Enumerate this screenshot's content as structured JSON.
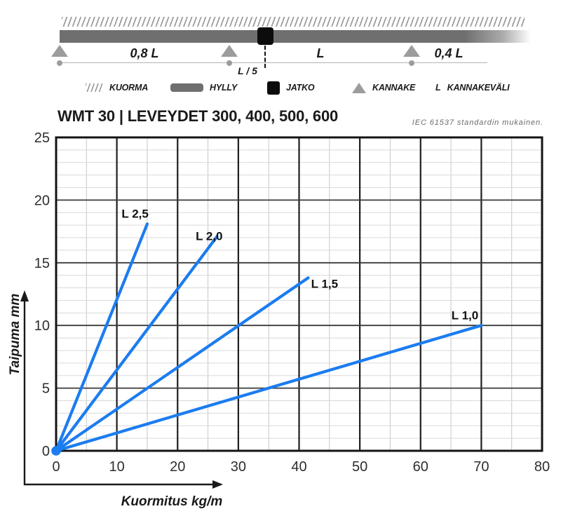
{
  "schematic": {
    "span_labels": {
      "left": "0,8 L",
      "middle": "L",
      "right": "0,4 L",
      "joint_offset": "L / 5"
    },
    "colors": {
      "beam": "#6f6f6f",
      "support": "#9c9c9c",
      "joint": "#0c0c0c"
    }
  },
  "legend": {
    "items": [
      {
        "icon": "hatch-icon",
        "label": "KUORMA"
      },
      {
        "icon": "tray-bar-icon",
        "label": "HYLLY"
      },
      {
        "icon": "joint-square-icon",
        "label": "JATKO"
      },
      {
        "icon": "support-triangle-icon",
        "label": "KANNAKE"
      },
      {
        "icon": "letter-l-symbol",
        "symbol": "L",
        "label": "KANNAKEVÄLI"
      }
    ]
  },
  "header": {
    "title": "WMT 30 | LEVEYDET 300, 400, 500, 600",
    "standard_note": "IEC 61537 standardin mukainen."
  },
  "chart_data": {
    "type": "line",
    "title": "WMT 30 | LEVEYDET 300, 400, 500, 600",
    "xlabel": "Kuormitus kg/m",
    "ylabel": "Taipuma mm",
    "xlim": [
      0,
      80
    ],
    "ylim": [
      0,
      25
    ],
    "x_ticks": [
      0,
      10,
      20,
      30,
      40,
      50,
      60,
      70,
      80
    ],
    "y_ticks": [
      0,
      5,
      10,
      15,
      20,
      25
    ],
    "grid": {
      "x_minor_step": 5,
      "y_minor_step": 1,
      "x_major_step": 10,
      "y_major_step": 5
    },
    "line_color": "#1b7cf0",
    "series": [
      {
        "name": "L 2,5",
        "points": [
          [
            0,
            0
          ],
          [
            15,
            18.1
          ]
        ],
        "label_at": [
          13.0,
          18.6
        ]
      },
      {
        "name": "L 2,0",
        "points": [
          [
            0,
            0
          ],
          [
            26.5,
            17.1
          ]
        ],
        "label_at": [
          25.2,
          16.8
        ]
      },
      {
        "name": "L 1,5",
        "points": [
          [
            0,
            0
          ],
          [
            41.5,
            13.8
          ]
        ],
        "label_at": [
          44.2,
          13.0
        ]
      },
      {
        "name": "L 1,0",
        "points": [
          [
            0,
            0
          ],
          [
            70,
            10
          ]
        ],
        "label_at": [
          67.3,
          10.5
        ]
      }
    ]
  }
}
